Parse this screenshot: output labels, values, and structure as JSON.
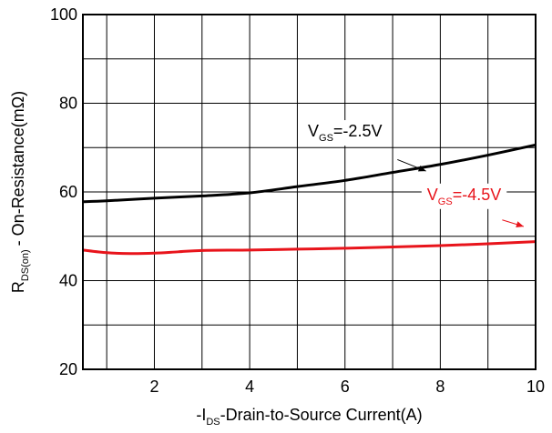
{
  "chart_data": {
    "type": "line",
    "xlabel": {
      "prefix": "-I",
      "sub": "DS",
      "suffix": "-Drain-to-Source Current(A)"
    },
    "ylabel": {
      "prefix": "R",
      "sub": "DS(on)",
      "suffix": "- On-Resistance(mΩ)"
    },
    "xlim": [
      0.5,
      10
    ],
    "ylim": [
      20,
      100
    ],
    "xticks": [
      2,
      4,
      6,
      8,
      10
    ],
    "yticks": [
      20,
      40,
      60,
      80,
      100
    ],
    "x_grid": [
      1,
      2,
      3,
      4,
      5,
      6,
      7,
      8,
      9
    ],
    "y_grid": [
      30,
      40,
      50,
      60,
      70,
      80,
      90
    ],
    "grid": true,
    "series": [
      {
        "color": "#000000",
        "label": {
          "prefix": "V",
          "sub": "GS",
          "suffix": "=-2.5V"
        },
        "label_at": [
          6.0,
          72.5
        ],
        "arrow_from": [
          7.1,
          67.3
        ],
        "arrow_to": [
          7.7,
          64.7
        ],
        "x": [
          0.5,
          1.0,
          2.0,
          3.0,
          4.0,
          5.0,
          6.0,
          7.0,
          8.0,
          9.0,
          10.0
        ],
        "y": [
          57.8,
          58.0,
          58.6,
          59.1,
          59.8,
          61.2,
          62.6,
          64.4,
          66.2,
          68.3,
          70.6
        ]
      },
      {
        "color": "#e8141b",
        "label": {
          "prefix": "V",
          "sub": "GS",
          "suffix": "=-4.5V"
        },
        "label_at": [
          8.5,
          58.2
        ],
        "arrow_from": [
          9.3,
          53.7
        ],
        "arrow_to": [
          9.75,
          52.2
        ],
        "x": [
          0.5,
          1.0,
          1.5,
          2.0,
          2.5,
          3.0,
          4.0,
          5.0,
          6.0,
          7.0,
          8.0,
          9.0,
          10.0
        ],
        "y": [
          46.9,
          46.3,
          46.1,
          46.2,
          46.5,
          46.8,
          46.9,
          47.1,
          47.3,
          47.6,
          47.9,
          48.3,
          48.8
        ]
      }
    ]
  }
}
